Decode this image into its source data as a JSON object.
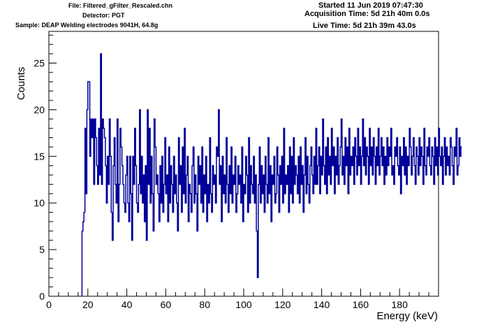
{
  "header": {
    "file": "File: Filtered_gFilter_Rescaled.chn",
    "detector": "Detector: PGT",
    "sample": "Sample: DEAP Welding electrodes 9041H, 64.8g",
    "started": "Started 11 Jun 2019 07:47:30",
    "acquisition": "Acquisition Time: 5d 21h 40m 0.0s",
    "live": "Live Time: 5d 21h 39m 43.0s"
  },
  "colors": {
    "line": "#000099",
    "axis": "#000000",
    "background": "#ffffff"
  },
  "chart_data": {
    "type": "line",
    "style": "histogram-step",
    "xlabel": "Energy (keV)",
    "ylabel": "Counts",
    "xlim": [
      0,
      200
    ],
    "ylim": [
      0,
      28.4
    ],
    "grid": false,
    "bin_width": 0.5,
    "x_start": 17,
    "x_ticks": [
      0,
      20,
      40,
      60,
      80,
      100,
      120,
      140,
      160,
      180
    ],
    "y_ticks": [
      0,
      5,
      10,
      15,
      20,
      25
    ],
    "values": [
      7,
      8,
      9,
      18,
      11,
      20,
      23,
      23,
      15,
      19,
      17,
      19,
      12,
      19,
      17,
      14,
      12,
      18,
      13,
      26,
      12,
      19,
      18,
      17,
      14,
      10,
      15,
      12,
      19,
      15,
      9,
      6,
      14,
      17,
      12,
      10,
      19,
      8,
      12,
      18,
      16,
      14,
      12,
      10,
      9,
      13,
      15,
      10,
      8,
      15,
      11,
      6,
      15,
      12,
      18,
      14,
      10,
      9,
      12,
      20,
      11,
      15,
      10,
      13,
      8,
      14,
      6,
      20,
      12,
      18,
      10,
      15,
      11,
      7,
      19,
      16,
      12,
      13,
      11,
      8,
      14,
      10,
      15,
      9,
      12,
      17,
      11,
      13,
      8,
      16,
      10,
      14,
      12,
      9,
      15,
      11,
      13,
      10,
      7,
      17,
      12,
      14,
      9,
      16,
      11,
      18,
      10,
      13,
      15,
      8,
      12,
      11,
      9,
      14,
      16,
      10,
      13,
      11,
      7,
      15,
      12,
      14,
      10,
      16,
      9,
      13,
      11,
      15,
      8,
      12,
      10,
      17,
      11,
      9,
      14,
      12,
      13,
      10,
      16,
      15,
      20,
      12,
      14,
      8,
      15,
      11,
      13,
      10,
      17,
      12,
      9,
      14,
      11,
      16,
      10,
      13,
      12,
      15,
      9,
      11,
      14,
      12,
      13,
      10,
      16,
      8,
      12,
      11,
      15,
      13,
      9,
      17,
      10,
      14,
      12,
      11,
      15,
      10,
      13,
      7,
      2,
      12,
      16,
      10,
      14,
      11,
      13,
      9,
      15,
      12,
      10,
      17,
      11,
      14,
      8,
      13,
      12,
      15,
      10,
      11,
      16,
      13,
      9,
      14,
      12,
      15,
      10,
      18,
      11,
      13,
      12,
      14,
      9,
      16,
      11,
      15,
      10,
      17,
      12,
      14,
      13,
      11,
      15,
      10,
      16,
      12,
      14,
      9,
      13,
      17,
      11,
      15,
      12,
      10,
      14,
      16,
      13,
      11,
      15,
      12,
      18,
      12,
      14,
      16,
      11,
      15,
      13,
      19,
      14,
      12,
      16,
      11,
      17,
      13,
      15,
      12,
      18,
      14,
      16,
      11,
      15,
      13,
      17,
      12,
      14,
      16,
      19,
      13,
      15,
      12,
      17,
      14,
      16,
      11,
      18,
      13,
      15,
      14,
      16,
      12,
      17,
      15,
      13,
      18,
      14,
      16,
      12,
      15,
      19,
      14,
      17,
      13,
      16,
      15,
      12,
      18,
      14,
      16,
      13,
      17,
      15,
      12,
      16,
      14,
      18,
      13,
      15,
      17,
      14,
      16,
      12,
      15,
      13,
      17,
      14,
      16,
      15,
      18,
      13,
      14,
      12,
      16,
      15,
      17,
      14,
      13,
      16,
      11,
      15,
      14,
      17,
      13,
      16,
      12,
      15,
      14,
      18,
      16,
      13,
      15,
      17,
      14,
      12,
      16,
      15,
      13,
      17,
      14,
      16,
      15,
      12,
      18,
      14,
      13,
      16,
      15,
      17,
      14,
      13,
      16,
      15,
      12,
      17,
      14,
      16,
      13,
      18,
      15,
      14,
      16,
      12,
      15,
      17,
      13,
      16,
      14,
      15,
      13,
      17,
      16,
      14,
      12,
      16,
      15,
      18,
      13,
      14,
      17,
      15,
      16
    ]
  }
}
